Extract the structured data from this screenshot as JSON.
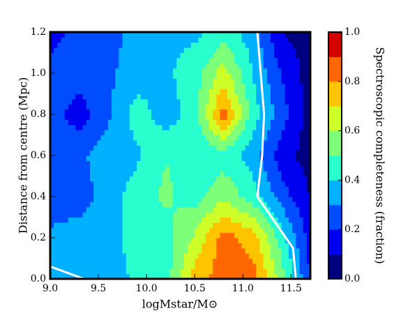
{
  "chart_data": {
    "type": "contour",
    "xlabel": "logMstar/M⊙",
    "ylabel": "Distance from centre (Mpc)",
    "colorbar_label": "Spectroscopic completeness (fraction)",
    "x": [
      9.0,
      9.3,
      9.6,
      9.9,
      10.2,
      10.5,
      10.8,
      11.1,
      11.4,
      11.7
    ],
    "y": [
      0.0,
      0.2,
      0.4,
      0.6,
      0.8,
      1.0,
      1.2
    ],
    "z": [
      [
        0.35,
        0.35,
        0.35,
        0.42,
        0.45,
        0.75,
        0.85,
        0.85,
        0.55,
        0.2
      ],
      [
        0.32,
        0.35,
        0.35,
        0.45,
        0.45,
        0.62,
        0.85,
        0.75,
        0.45,
        0.15
      ],
      [
        0.25,
        0.25,
        0.35,
        0.45,
        0.52,
        0.45,
        0.58,
        0.45,
        0.25,
        0.1
      ],
      [
        0.25,
        0.28,
        0.35,
        0.38,
        0.5,
        0.42,
        0.45,
        0.35,
        0.15,
        0.05
      ],
      [
        0.25,
        0.15,
        0.28,
        0.45,
        0.35,
        0.45,
        0.85,
        0.45,
        0.25,
        0.05
      ],
      [
        0.25,
        0.25,
        0.28,
        0.35,
        0.38,
        0.45,
        0.65,
        0.4,
        0.2,
        0.05
      ],
      [
        0.15,
        0.25,
        0.25,
        0.35,
        0.38,
        0.38,
        0.45,
        0.35,
        0.1,
        0.05
      ]
    ],
    "levels": [
      0,
      0.1,
      0.2,
      0.3,
      0.4,
      0.5,
      0.6,
      0.7,
      0.8,
      0.9,
      1.0
    ],
    "colors": [
      "#00007f",
      "#0000f1",
      "#004dff",
      "#00b1ff",
      "#29ffce",
      "#7dff7a",
      "#ceff29",
      "#ffc400",
      "#ff6800",
      "#d40000"
    ],
    "lines": [
      {
        "color": "#ffffff",
        "x": [
          9.0,
          9.35
        ],
        "y": [
          0.06,
          0.0
        ]
      },
      {
        "color": "#ffffff",
        "x": [
          11.55,
          11.52,
          11.15,
          11.2,
          11.22,
          11.15
        ],
        "y": [
          0.0,
          0.15,
          0.4,
          0.6,
          0.8,
          1.2
        ]
      }
    ],
    "xlim": [
      9.0,
      11.7
    ],
    "ylim": [
      0.0,
      1.2
    ],
    "xticks": [
      {
        "value": 9,
        "label": "9.0"
      },
      9.5,
      {
        "value": 10,
        "label": "10.0"
      },
      10.5,
      {
        "value": 11,
        "label": "11.0"
      },
      11.5
    ],
    "yticks": [
      {
        "value": 0,
        "label": "0.0"
      },
      0.2,
      0.4,
      0.6,
      0.8,
      {
        "value": 1,
        "label": "1.0"
      },
      1.2
    ],
    "cticks": [
      {
        "value": 0,
        "label": "0.0"
      },
      0.2,
      0.4,
      0.6,
      0.8,
      {
        "value": 1,
        "label": "1.0"
      }
    ]
  }
}
